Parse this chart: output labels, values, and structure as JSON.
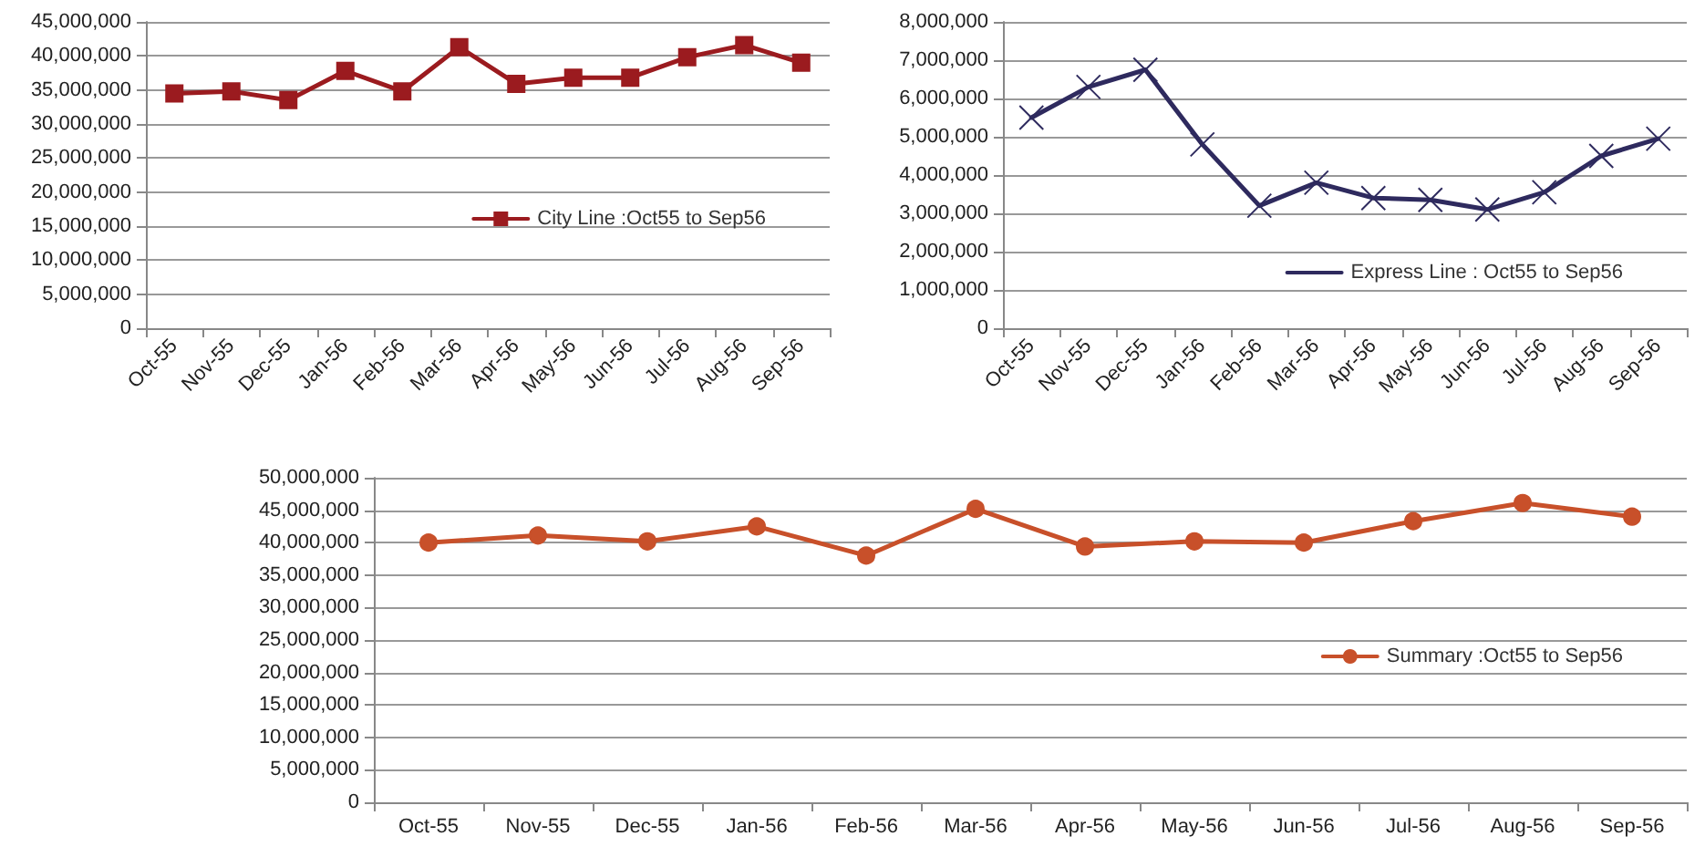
{
  "chart_data": [
    {
      "type": "line",
      "categories": [
        "Oct-55",
        "Nov-55",
        "Dec-55",
        "Jan-56",
        "Feb-56",
        "Mar-56",
        "Apr-56",
        "May-56",
        "Jun-56",
        "Jul-56",
        "Aug-56",
        "Sep-56"
      ],
      "series": [
        {
          "name": "City Line :Oct55 to Sep56",
          "color": "#9b1b1f",
          "values": [
            34500000,
            34800000,
            33500000,
            37800000,
            34800000,
            41300000,
            35900000,
            36800000,
            36800000,
            39800000,
            41600000,
            39000000
          ]
        }
      ],
      "ylim": [
        0,
        45000000
      ],
      "yticks": [
        {
          "value": 0,
          "label": "0"
        },
        {
          "value": 5000000,
          "label": "5,000,000"
        },
        {
          "value": 10000000,
          "label": "10,000,000"
        },
        {
          "value": 15000000,
          "label": "15,000,000"
        },
        {
          "value": 20000000,
          "label": "20,000,000"
        },
        {
          "value": 25000000,
          "label": "25,000,000"
        },
        {
          "value": 30000000,
          "label": "30,000,000"
        },
        {
          "value": 35000000,
          "label": "35,000,000"
        },
        {
          "value": 40000000,
          "label": "40,000,000"
        },
        {
          "value": 45000000,
          "label": "45,000,000"
        }
      ],
      "grid": "y",
      "legend": "right",
      "marker": "square",
      "line_style": "solid"
    },
    {
      "type": "line",
      "categories": [
        "Oct-55",
        "Nov-55",
        "Dec-55",
        "Jan-56",
        "Feb-56",
        "Mar-56",
        "Apr-56",
        "May-56",
        "Jun-56",
        "Jul-56",
        "Aug-56",
        "Sep-56"
      ],
      "series": [
        {
          "name": "Express Line : Oct55 to Sep56",
          "color": "#2e2a5e",
          "values": [
            5500000,
            6300000,
            6750000,
            4800000,
            3200000,
            3800000,
            3400000,
            3350000,
            3100000,
            3550000,
            4500000,
            4950000
          ]
        }
      ],
      "ylim": [
        0,
        8000000
      ],
      "yticks": [
        {
          "value": 0,
          "label": "0"
        },
        {
          "value": 1000000,
          "label": "1,000,000"
        },
        {
          "value": 2000000,
          "label": "2,000,000"
        },
        {
          "value": 3000000,
          "label": "3,000,000"
        },
        {
          "value": 4000000,
          "label": "4,000,000"
        },
        {
          "value": 5000000,
          "label": "5,000,000"
        },
        {
          "value": 6000000,
          "label": "6,000,000"
        },
        {
          "value": 7000000,
          "label": "7,000,000"
        },
        {
          "value": 8000000,
          "label": "8,000,000"
        }
      ],
      "grid": "y",
      "legend": "bottom right",
      "marker": "cross",
      "line_style": "solid"
    },
    {
      "type": "line",
      "categories": [
        "Oct-55",
        "Nov-55",
        "Dec-55",
        "Jan-56",
        "Feb-56",
        "Mar-56",
        "Apr-56",
        "May-56",
        "Jun-56",
        "Jul-56",
        "Aug-56",
        "Sep-56"
      ],
      "series": [
        {
          "name": "Summary :Oct55 to Sep56",
          "color": "#c8502a",
          "values": [
            40000000,
            41100000,
            40200000,
            42500000,
            38000000,
            45200000,
            39400000,
            40200000,
            40000000,
            43300000,
            46100000,
            44000000
          ]
        }
      ],
      "ylim": [
        0,
        50000000
      ],
      "yticks": [
        {
          "value": 0,
          "label": "0"
        },
        {
          "value": 5000000,
          "label": "5,000,000"
        },
        {
          "value": 10000000,
          "label": "10,000,000"
        },
        {
          "value": 15000000,
          "label": "15,000,000"
        },
        {
          "value": 20000000,
          "label": "20,000,000"
        },
        {
          "value": 25000000,
          "label": "25,000,000"
        },
        {
          "value": 30000000,
          "label": "30,000,000"
        },
        {
          "value": 35000000,
          "label": "35,000,000"
        },
        {
          "value": 40000000,
          "label": "40,000,000"
        },
        {
          "value": 45000000,
          "label": "45,000,000"
        },
        {
          "value": 50000000,
          "label": "50,000,000"
        }
      ],
      "grid": "y",
      "legend": "right",
      "marker": "circle",
      "line_style": "solid"
    }
  ]
}
